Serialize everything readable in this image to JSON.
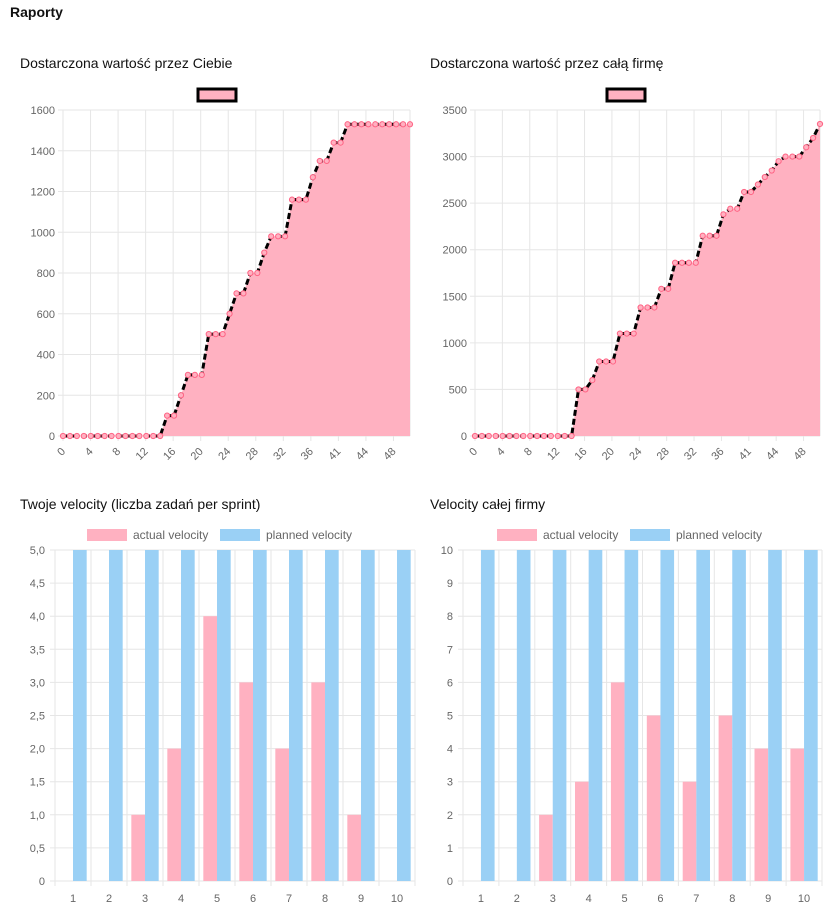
{
  "page": {
    "title": "Raporty"
  },
  "colors": {
    "pink_fill": "#ffb1c1",
    "pink_point": "#ff6384",
    "blue_fill": "#9ad0f5",
    "line": "#000000",
    "grid": "#e6e6e6"
  },
  "charts": [
    {
      "title": "Dostarczona wartość przez Ciebie",
      "chart_data": {
        "type": "area",
        "legend": {
          "position": "top",
          "entries": [
            ""
          ]
        },
        "ylim": [
          0,
          1600
        ],
        "yticks": [
          "0",
          "200",
          "400",
          "600",
          "800",
          "1000",
          "1200",
          "1400",
          "1600"
        ],
        "xticks": [
          "0",
          "4",
          "8",
          "12",
          "16",
          "20",
          "24",
          "28",
          "32",
          "36",
          "41",
          "44",
          "48"
        ],
        "x": [
          0,
          1,
          2,
          3,
          4,
          5,
          6,
          7,
          8,
          9,
          10,
          11,
          12,
          13,
          14,
          15,
          16,
          17,
          18,
          19,
          20,
          21,
          22,
          23,
          24,
          25,
          26,
          27,
          28,
          29,
          30,
          31,
          32,
          33,
          34,
          35,
          36,
          37,
          38,
          39,
          40,
          41,
          42,
          43,
          44,
          45,
          46,
          47,
          48,
          49,
          50
        ],
        "values": [
          0,
          0,
          0,
          0,
          0,
          0,
          0,
          0,
          0,
          0,
          0,
          0,
          0,
          0,
          0,
          100,
          100,
          200,
          300,
          300,
          300,
          500,
          500,
          500,
          600,
          700,
          700,
          800,
          800,
          900,
          980,
          980,
          980,
          1160,
          1160,
          1160,
          1270,
          1350,
          1350,
          1440,
          1440,
          1530,
          1530,
          1530,
          1530,
          1530,
          1530,
          1530,
          1530,
          1530,
          1530
        ]
      }
    },
    {
      "title": "Dostarczona wartość przez całą firmę",
      "chart_data": {
        "type": "area",
        "legend": {
          "position": "top",
          "entries": [
            ""
          ]
        },
        "ylim": [
          0,
          3500
        ],
        "yticks": [
          "0",
          "500",
          "1000",
          "1500",
          "2000",
          "2500",
          "3000",
          "3500"
        ],
        "xticks": [
          "0",
          "4",
          "8",
          "12",
          "16",
          "20",
          "24",
          "28",
          "32",
          "36",
          "41",
          "44",
          "48"
        ],
        "x": [
          0,
          1,
          2,
          3,
          4,
          5,
          6,
          7,
          8,
          9,
          10,
          11,
          12,
          13,
          14,
          15,
          16,
          17,
          18,
          19,
          20,
          21,
          22,
          23,
          24,
          25,
          26,
          27,
          28,
          29,
          30,
          31,
          32,
          33,
          34,
          35,
          36,
          37,
          38,
          39,
          40,
          41,
          42,
          43,
          44,
          45,
          46,
          47,
          48,
          49,
          50
        ],
        "values": [
          0,
          0,
          0,
          0,
          0,
          0,
          0,
          0,
          0,
          0,
          0,
          0,
          0,
          0,
          0,
          500,
          500,
          600,
          800,
          800,
          800,
          1100,
          1100,
          1100,
          1380,
          1380,
          1380,
          1580,
          1580,
          1860,
          1860,
          1860,
          1860,
          2150,
          2150,
          2150,
          2380,
          2440,
          2440,
          2620,
          2620,
          2700,
          2780,
          2850,
          2950,
          3000,
          3000,
          3000,
          3100,
          3200,
          3350
        ]
      }
    },
    {
      "title": "Twoje velocity (liczba zadań per sprint)",
      "chart_data": {
        "type": "bar",
        "legend": {
          "position": "top"
        },
        "categories": [
          "1",
          "2",
          "3",
          "4",
          "5",
          "6",
          "7",
          "8",
          "9",
          "10"
        ],
        "ylim": [
          0,
          5
        ],
        "yticks": [
          "0",
          "0,5",
          "1,0",
          "1,5",
          "2,0",
          "2,5",
          "3,0",
          "3,5",
          "4,0",
          "4,5",
          "5,0"
        ],
        "series": [
          {
            "name": "actual velocity",
            "values": [
              0,
              0,
              1,
              2,
              4,
              3,
              2,
              3,
              1,
              0
            ]
          },
          {
            "name": "planned velocity",
            "values": [
              5,
              5,
              5,
              5,
              5,
              5,
              5,
              5,
              5,
              5
            ]
          }
        ]
      }
    },
    {
      "title": "Velocity całej firmy",
      "chart_data": {
        "type": "bar",
        "legend": {
          "position": "top"
        },
        "categories": [
          "1",
          "2",
          "3",
          "4",
          "5",
          "6",
          "7",
          "8",
          "9",
          "10"
        ],
        "ylim": [
          0,
          10
        ],
        "yticks": [
          "0",
          "1",
          "2",
          "3",
          "4",
          "5",
          "6",
          "7",
          "8",
          "9",
          "10"
        ],
        "series": [
          {
            "name": "actual velocity",
            "values": [
              0,
              0,
              2,
              3,
              6,
              5,
              3,
              5,
              4,
              4
            ]
          },
          {
            "name": "planned velocity",
            "values": [
              10,
              10,
              10,
              10,
              10,
              10,
              10,
              10,
              10,
              10
            ]
          }
        ]
      }
    }
  ]
}
